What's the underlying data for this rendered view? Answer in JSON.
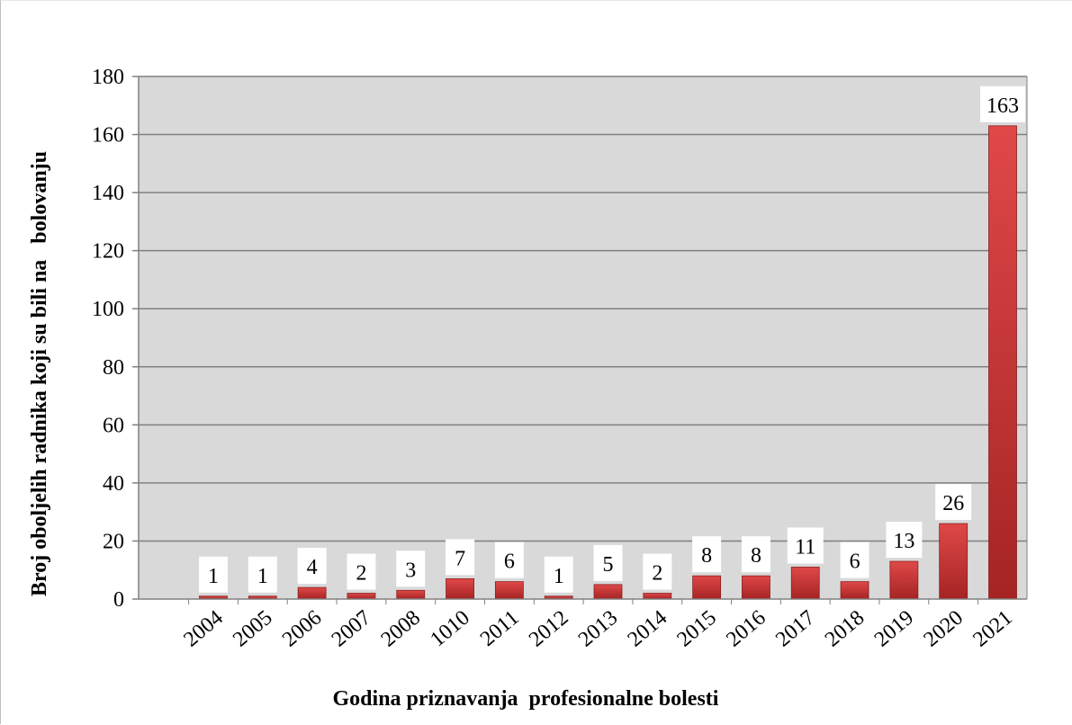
{
  "chart_data": {
    "type": "bar",
    "categories": [
      "2004",
      "2005",
      "2006",
      "2007",
      "2008",
      "1010",
      "2011",
      "2012",
      "2013",
      "2014",
      "2015",
      "2016",
      "2017",
      "2018",
      "2019",
      "2020",
      "2021"
    ],
    "values": [
      1,
      1,
      4,
      2,
      3,
      7,
      6,
      1,
      5,
      2,
      8,
      8,
      11,
      6,
      13,
      26,
      163
    ],
    "data_labels": [
      "1",
      "1",
      "4",
      "2",
      "3",
      "7",
      "6",
      "1",
      "5",
      "2",
      "8",
      "8",
      "11",
      "6",
      "13",
      "26",
      "163"
    ],
    "xlabel": "Godina priznavanja  profesionalne bolesti",
    "ylabel": "Broj oboljelih radnika koji su bili na   bolovanju",
    "ylim": [
      0,
      180
    ],
    "yticks": [
      0,
      20,
      40,
      60,
      80,
      100,
      120,
      140,
      160,
      180
    ],
    "grid": true,
    "legend": "none",
    "colors": {
      "plot_background": "#d9d9d9",
      "bar_top": "#e04848",
      "bar_bottom": "#a52424",
      "gridline": "#808080",
      "axis": "#808080"
    }
  }
}
